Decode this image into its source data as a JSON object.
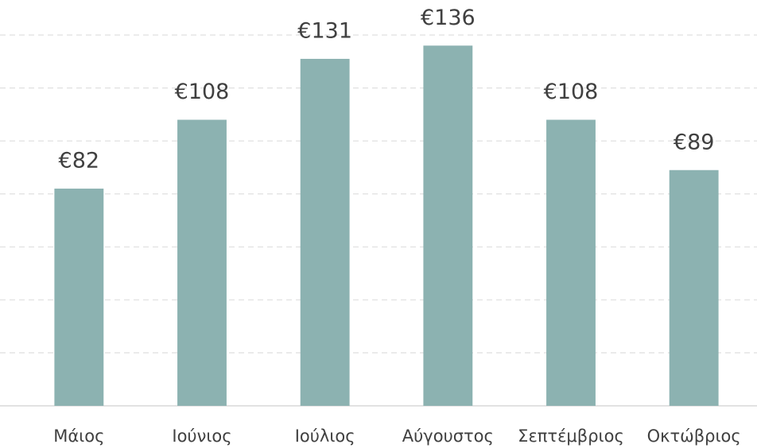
{
  "chart_data": {
    "type": "bar",
    "categories": [
      "Μάιος",
      "Ιούνιος",
      "Ιούλιος",
      "Αύγουστος",
      "Σεπτέμβριος",
      "Οκτώβριος"
    ],
    "values": [
      82,
      108,
      131,
      136,
      108,
      89
    ],
    "value_labels": [
      "€82",
      "€108",
      "€131",
      "€136",
      "€108",
      "€89"
    ],
    "color": "#8cb2b1",
    "ylim": [
      0,
      140
    ],
    "yticks": [
      0,
      20,
      40,
      60,
      80,
      100,
      120,
      140
    ],
    "grid": true
  }
}
